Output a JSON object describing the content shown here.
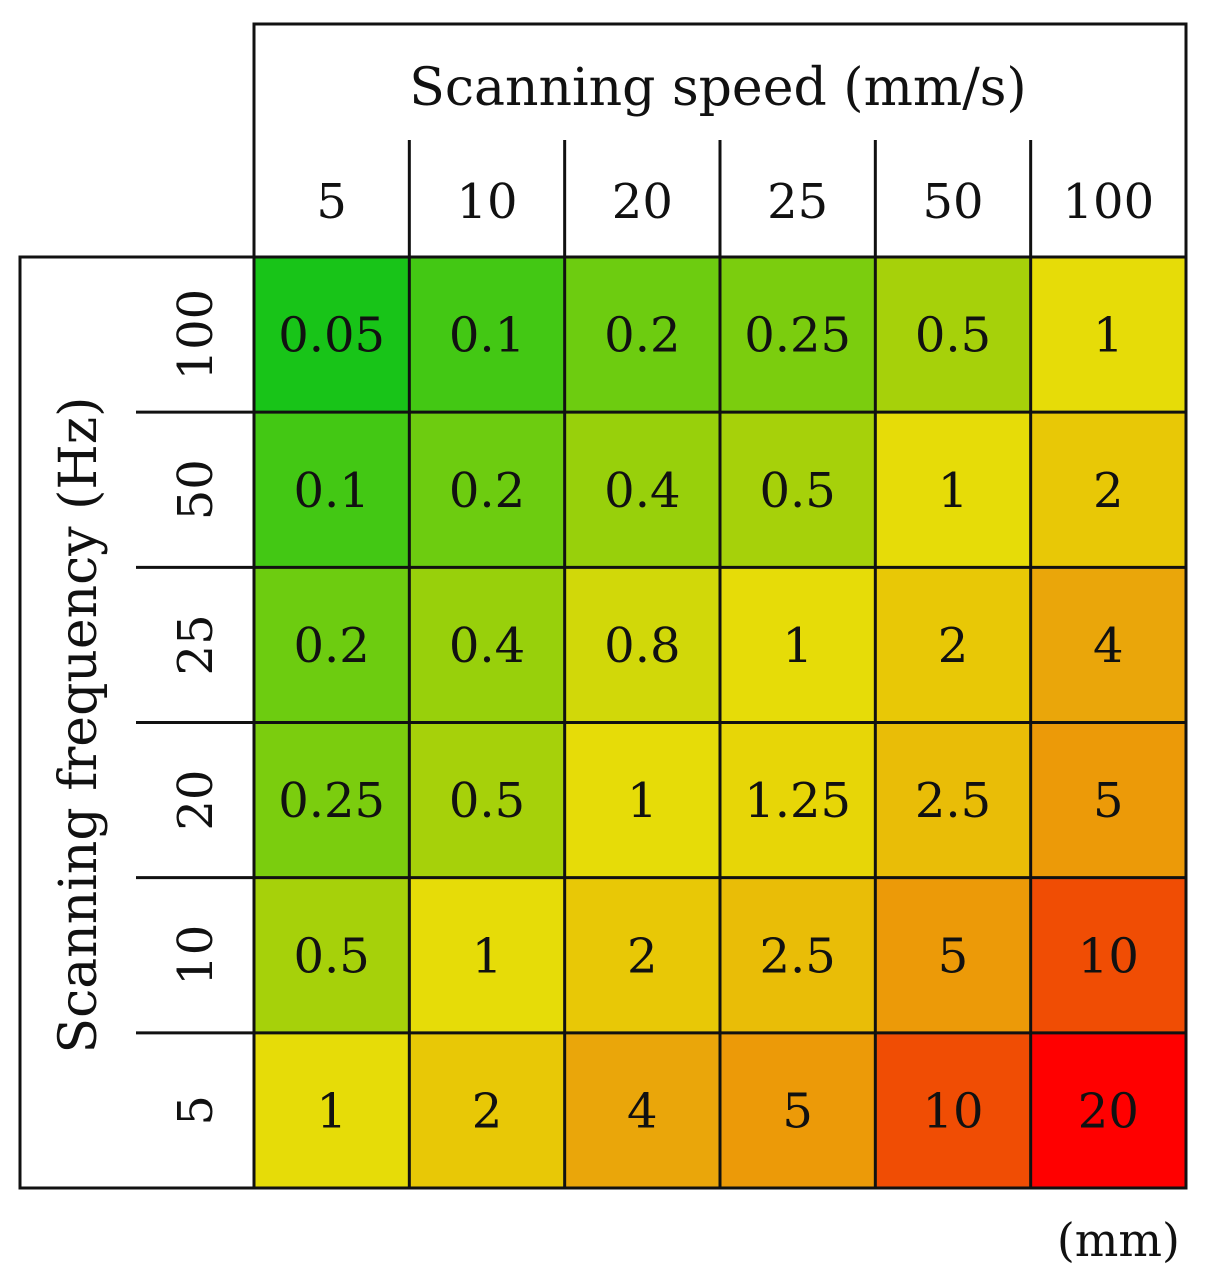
{
  "chart_data": {
    "type": "heatmap",
    "title": "",
    "xlabel": "Scanning speed (mm/s)",
    "ylabel": "Scanning frequency (Hz)",
    "unit_label": "(mm)",
    "x_categories": [
      "5",
      "10",
      "20",
      "25",
      "50",
      "100"
    ],
    "y_categories": [
      "100",
      "50",
      "25",
      "20",
      "10",
      "5"
    ],
    "values": [
      [
        0.05,
        0.1,
        0.2,
        0.25,
        0.5,
        1
      ],
      [
        0.1,
        0.2,
        0.4,
        0.5,
        1,
        2
      ],
      [
        0.2,
        0.4,
        0.8,
        1,
        2,
        4
      ],
      [
        0.25,
        0.5,
        1,
        1.25,
        2.5,
        5
      ],
      [
        0.5,
        1,
        2,
        2.5,
        5,
        10
      ],
      [
        1,
        2,
        4,
        5,
        10,
        20
      ]
    ],
    "value_labels": [
      [
        "0.05",
        "0.1",
        "0.2",
        "0.25",
        "0.5",
        "1"
      ],
      [
        "0.1",
        "0.2",
        "0.4",
        "0.5",
        "1",
        "2"
      ],
      [
        "0.2",
        "0.4",
        "0.8",
        "1",
        "2",
        "4"
      ],
      [
        "0.25",
        "0.5",
        "1",
        "1.25",
        "2.5",
        "5"
      ],
      [
        "0.5",
        "1",
        "2",
        "2.5",
        "5",
        "10"
      ],
      [
        "1",
        "2",
        "4",
        "5",
        "10",
        "20"
      ]
    ],
    "colormap": {
      "stops": [
        {
          "value": 0.05,
          "color": "#18c418"
        },
        {
          "value": 0.5,
          "color": "#a6d10a"
        },
        {
          "value": 1,
          "color": "#e6dc08"
        },
        {
          "value": 2,
          "color": "#e8c806"
        },
        {
          "value": 4,
          "color": "#eaa60a"
        },
        {
          "value": 5,
          "color": "#ec9a08"
        },
        {
          "value": 10,
          "color": "#f04d04"
        },
        {
          "value": 20,
          "color": "#ff0000"
        }
      ],
      "scale": "log"
    },
    "grid": true,
    "legend": "none"
  }
}
